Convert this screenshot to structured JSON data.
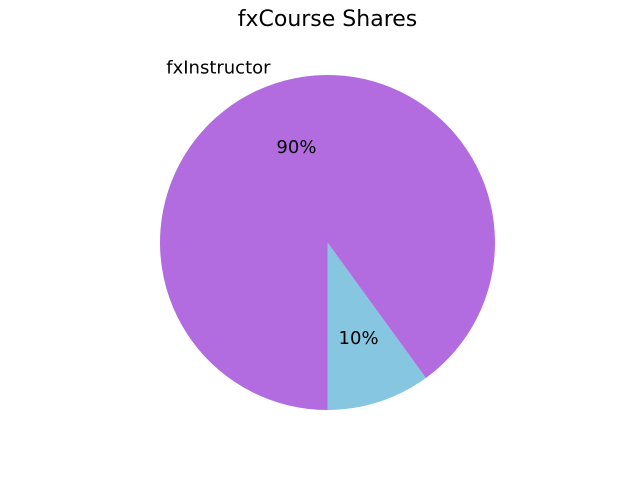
{
  "chart_data": {
    "type": "pie",
    "title": "fxCourse Shares",
    "start_angle_deg": 270,
    "counterclock": true,
    "slices": [
      {
        "label": "",
        "value": 10,
        "pct_label": "10%",
        "color": "#87c6e0"
      },
      {
        "label": "fxInstructor",
        "value": 90,
        "pct_label": "90%",
        "color": "#b26ce0"
      }
    ]
  }
}
